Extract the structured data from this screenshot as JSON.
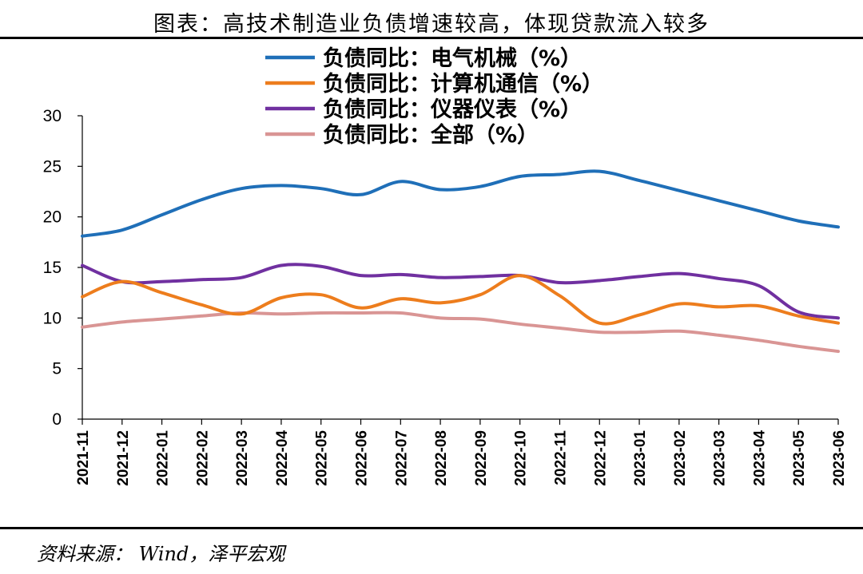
{
  "page": {
    "title": "图表：高技术制造业负债增速较高，体现贷款流入较多",
    "source": "资料来源： Wind，泽平宏观"
  },
  "chart_data": {
    "type": "line",
    "title": "图表：高技术制造业负债增速较高，体现贷款流入较多",
    "xlabel": "",
    "ylabel": "",
    "ylim": [
      0,
      30
    ],
    "yticks": [
      0,
      5,
      10,
      15,
      20,
      25,
      30
    ],
    "grid": false,
    "legend_position": "top",
    "categories": [
      "2021-11",
      "2021-12",
      "2022-01",
      "2022-02",
      "2022-03",
      "2022-04",
      "2022-05",
      "2022-06",
      "2022-07",
      "2022-08",
      "2022-09",
      "2022-10",
      "2022-11",
      "2022-12",
      "2023-01",
      "2023-02",
      "2023-03",
      "2023-04",
      "2023-05",
      "2023-06"
    ],
    "series": [
      {
        "name": "负债同比：电气机械（%）",
        "color": "#1f6fb8",
        "values": [
          18.1,
          18.7,
          20.2,
          21.7,
          22.8,
          23.1,
          22.8,
          22.2,
          23.5,
          22.7,
          23.0,
          24.0,
          24.2,
          24.5,
          23.6,
          22.6,
          21.6,
          20.6,
          19.6,
          19.0
        ]
      },
      {
        "name": "负债同比：计算机通信（%）",
        "color": "#ed7d1d",
        "values": [
          12.1,
          13.6,
          12.5,
          11.3,
          10.4,
          12.0,
          12.3,
          11.0,
          11.9,
          11.5,
          12.3,
          14.2,
          12.2,
          9.5,
          10.3,
          11.4,
          11.1,
          11.2,
          10.2,
          9.5
        ]
      },
      {
        "name": "负债同比：仪器仪表（%）",
        "color": "#7030a0",
        "values": [
          15.2,
          13.6,
          13.6,
          13.8,
          14.0,
          15.2,
          15.1,
          14.2,
          14.3,
          14.0,
          14.1,
          14.2,
          13.5,
          13.7,
          14.1,
          14.4,
          13.9,
          13.2,
          10.6,
          10.0
        ]
      },
      {
        "name": "负债同比：全部（%）",
        "color": "#d99594",
        "values": [
          9.1,
          9.6,
          9.9,
          10.2,
          10.5,
          10.4,
          10.5,
          10.5,
          10.5,
          10.0,
          9.9,
          9.4,
          9.0,
          8.6,
          8.6,
          8.7,
          8.3,
          7.8,
          7.2,
          6.7
        ]
      }
    ]
  }
}
